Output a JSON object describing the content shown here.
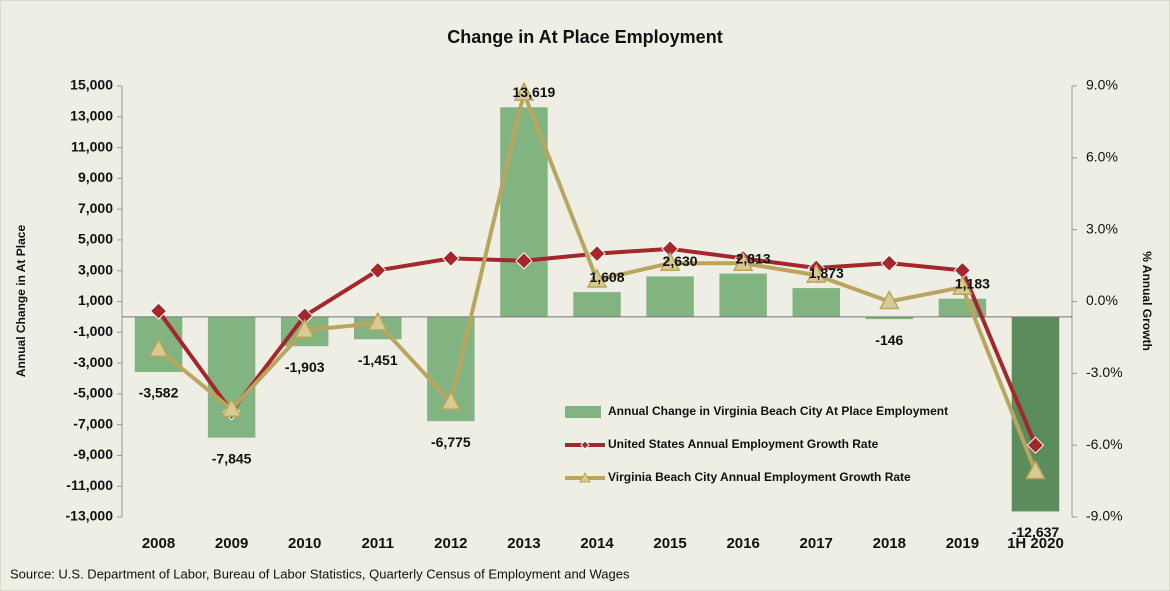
{
  "chart_data": {
    "type": "bar",
    "title": "Change in At Place Employment",
    "y_label": "Annual Change in At Place",
    "y2_label": "% Annual Growth",
    "source": "Source: U.S. Department of Labor, Bureau of Labor Statistics, Quarterly Census of Employment and Wages",
    "categories": [
      "2008",
      "2009",
      "2010",
      "2011",
      "2012",
      "2013",
      "2014",
      "2015",
      "2016",
      "2017",
      "2018",
      "2019",
      "1H 2020"
    ],
    "ylim": [
      -13000,
      15000
    ],
    "yticks": [
      {
        "value": -13000,
        "label": "-13,000"
      },
      {
        "value": -11000,
        "label": "-11,000"
      },
      {
        "value": -9000,
        "label": "-9,000"
      },
      {
        "value": -7000,
        "label": "-7,000"
      },
      {
        "value": -5000,
        "label": "-5,000"
      },
      {
        "value": -3000,
        "label": "-3,000"
      },
      {
        "value": -1000,
        "label": "-1,000"
      },
      {
        "value": 1000,
        "label": "1,000"
      },
      {
        "value": 3000,
        "label": "3,000"
      },
      {
        "value": 5000,
        "label": "5,000"
      },
      {
        "value": 7000,
        "label": "7,000"
      },
      {
        "value": 9000,
        "label": "9,000"
      },
      {
        "value": 11000,
        "label": "11,000"
      },
      {
        "value": 13000,
        "label": "13,000"
      },
      {
        "value": 15000,
        "label": "15,000"
      }
    ],
    "y2lim": [
      -9,
      9
    ],
    "y2ticks": [
      {
        "value": -9,
        "label": "-9.0%"
      },
      {
        "value": -6,
        "label": "-6.0%"
      },
      {
        "value": -3,
        "label": "-3.0%"
      },
      {
        "value": 0,
        "label": "0.0%"
      },
      {
        "value": 3,
        "label": "3.0%"
      },
      {
        "value": 6,
        "label": "6.0%"
      },
      {
        "value": 9,
        "label": "9.0%"
      }
    ],
    "grid": false,
    "series": [
      {
        "name": "Annual Change in Virginia Beach City At Place Employment",
        "type": "bar",
        "color": "#82b482",
        "colors": [
          "#82b482",
          "#82b482",
          "#82b482",
          "#82b482",
          "#82b482",
          "#82b482",
          "#82b482",
          "#82b482",
          "#82b482",
          "#82b482",
          "#82b482",
          "#82b482",
          "#5b8c5b"
        ],
        "values": [
          -3582,
          -7845,
          -1903,
          -1451,
          -6775,
          13619,
          1608,
          2630,
          2813,
          1873,
          -146,
          1183,
          -12637
        ],
        "value_labels": [
          "-3,582",
          "-7,845",
          "-1,903",
          "-1,451",
          "-6,775",
          "13,619",
          "1,608",
          "2,630",
          "2,813",
          "1,873",
          "-146",
          "1,183",
          "-12,637"
        ]
      },
      {
        "name": "United States Annual Employment Growth Rate",
        "type": "line",
        "axis": "y2",
        "color": "#a3272b",
        "marker": "diamond",
        "values": [
          -0.4,
          -4.6,
          -0.6,
          1.3,
          1.8,
          1.7,
          2.0,
          2.2,
          1.8,
          1.4,
          1.6,
          1.3,
          -6.0
        ]
      },
      {
        "name": "Virginia Beach City Annual Employment Growth Rate",
        "type": "line",
        "axis": "y2",
        "color": "#b9a55e",
        "marker": "triangle",
        "values": [
          -2.0,
          -4.5,
          -1.2,
          -0.9,
          -4.2,
          8.7,
          0.9,
          1.6,
          1.6,
          1.1,
          0.0,
          0.6,
          -7.1
        ]
      }
    ]
  }
}
